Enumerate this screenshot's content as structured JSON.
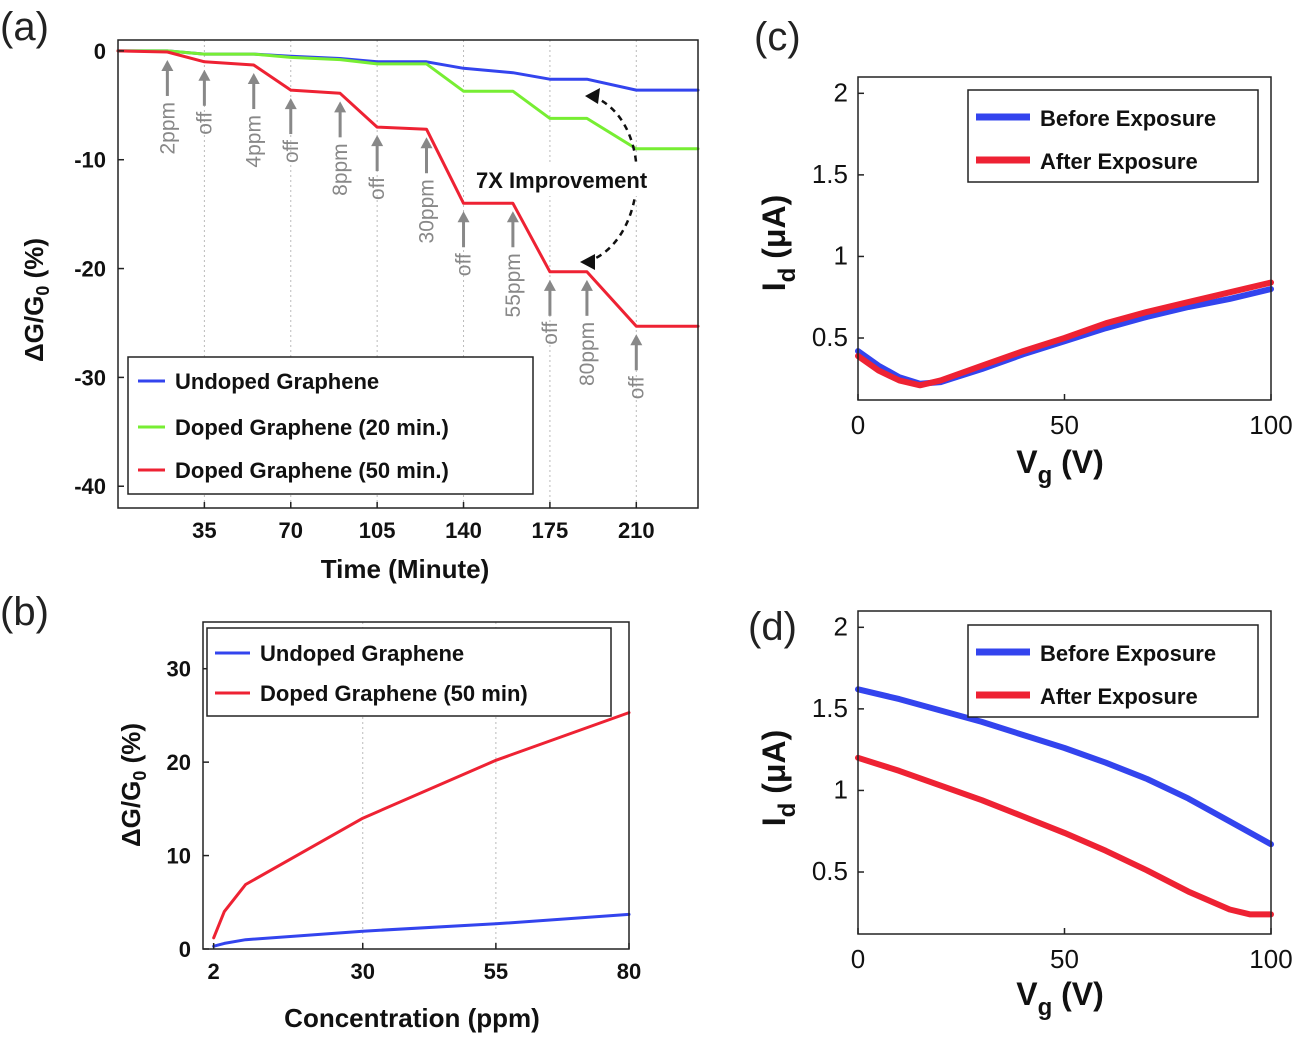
{
  "colors": {
    "blue": "#3344ee",
    "green": "#77ee33",
    "red": "#ee2233",
    "annotation": "#888888",
    "grid": "#bbbbbb"
  },
  "chart_data": [
    {
      "id": "a",
      "panel_label": "(a)",
      "type": "line",
      "xlabel": "Time (Minute)",
      "ylabel_main": "ΔG/G",
      "ylabel_sub": "0",
      "ylabel_tail": " (%)",
      "xlim": [
        0,
        235
      ],
      "ylim": [
        -42,
        1
      ],
      "xticks": [
        35,
        70,
        105,
        140,
        175,
        210
      ],
      "yticks": [
        0,
        -10,
        -20,
        -30,
        -40
      ],
      "grid_x": [
        35,
        70,
        105,
        140,
        175,
        210
      ],
      "series": [
        {
          "name": "Undoped Graphene",
          "color": "#3344ee",
          "x": [
            0,
            20,
            35,
            55,
            70,
            90,
            105,
            125,
            140,
            160,
            175,
            190,
            210,
            235
          ],
          "y": [
            0,
            0,
            -0.3,
            -0.3,
            -0.5,
            -0.7,
            -1.0,
            -1.0,
            -1.6,
            -2.0,
            -2.6,
            -2.6,
            -3.6,
            -3.6
          ]
        },
        {
          "name": "Doped Graphene (20 min.)",
          "color": "#77ee33",
          "x": [
            0,
            20,
            35,
            55,
            70,
            90,
            105,
            125,
            140,
            160,
            175,
            190,
            210,
            235
          ],
          "y": [
            0,
            0,
            -0.3,
            -0.3,
            -0.6,
            -0.8,
            -1.2,
            -1.2,
            -3.7,
            -3.7,
            -6.2,
            -6.2,
            -9.0,
            -9.0
          ]
        },
        {
          "name": "Doped Graphene (50 min.)",
          "color": "#ee2233",
          "x": [
            0,
            20,
            35,
            55,
            70,
            90,
            105,
            125,
            140,
            160,
            175,
            190,
            210,
            235
          ],
          "y": [
            0,
            -0.1,
            -1.0,
            -1.3,
            -3.6,
            -3.9,
            -7.0,
            -7.2,
            -14.0,
            -14.0,
            -20.3,
            -20.3,
            -25.3,
            -25.3
          ]
        }
      ],
      "annotations": [
        {
          "text": "2ppm",
          "x": 20
        },
        {
          "text": "off",
          "x": 35
        },
        {
          "text": "4ppm",
          "x": 55
        },
        {
          "text": "off",
          "x": 70
        },
        {
          "text": "8ppm",
          "x": 90
        },
        {
          "text": "off",
          "x": 105
        },
        {
          "text": "30ppm",
          "x": 125
        },
        {
          "text": "off",
          "x": 140
        },
        {
          "text": "55ppm",
          "x": 160
        },
        {
          "text": "off",
          "x": 175
        },
        {
          "text": "80ppm",
          "x": 190
        },
        {
          "text": "off",
          "x": 210
        }
      ],
      "improvement_label": "7X Improvement",
      "legend_position": "bottom-left"
    },
    {
      "id": "b",
      "panel_label": "(b)",
      "type": "line",
      "xlabel": "Concentration (ppm)",
      "ylabel_main": "ΔG/G",
      "ylabel_sub": "0",
      "ylabel_tail": " (%)",
      "xlim": [
        0,
        80
      ],
      "ylim": [
        0,
        35
      ],
      "xticks": [
        2,
        30,
        55,
        80
      ],
      "yticks": [
        0,
        10,
        20,
        30
      ],
      "grid_x": [
        30,
        55
      ],
      "series": [
        {
          "name": "Undoped Graphene",
          "color": "#3344ee",
          "x": [
            2,
            4,
            8,
            30,
            55,
            80
          ],
          "y": [
            0.3,
            0.6,
            1.0,
            1.9,
            2.7,
            3.7
          ]
        },
        {
          "name": "Doped Graphene (50 min)",
          "color": "#ee2233",
          "x": [
            2,
            4,
            8,
            30,
            55,
            80
          ],
          "y": [
            1.2,
            4.0,
            6.9,
            14.0,
            20.2,
            25.3
          ]
        }
      ],
      "legend_position": "top"
    },
    {
      "id": "c",
      "panel_label": "(c)",
      "type": "line",
      "xlabel_main": "V",
      "xlabel_sub": "g",
      "xlabel_tail": " (V)",
      "ylabel_main": "I",
      "ylabel_sub": "d",
      "ylabel_tail": " (μA)",
      "xlim": [
        0,
        100
      ],
      "ylim": [
        0.12,
        2.1
      ],
      "xticks": [
        0,
        50,
        100
      ],
      "yticks": [
        0.5,
        1,
        1.5,
        2
      ],
      "series": [
        {
          "name": "Before Exposure",
          "color": "#3344ee",
          "x": [
            0,
            5,
            10,
            15,
            20,
            30,
            40,
            50,
            60,
            70,
            80,
            90,
            100
          ],
          "y": [
            0.42,
            0.33,
            0.26,
            0.22,
            0.23,
            0.31,
            0.4,
            0.48,
            0.56,
            0.63,
            0.69,
            0.74,
            0.8
          ]
        },
        {
          "name": "After Exposure",
          "color": "#ee2233",
          "x": [
            0,
            5,
            10,
            15,
            20,
            30,
            40,
            50,
            60,
            70,
            80,
            90,
            100
          ],
          "y": [
            0.39,
            0.3,
            0.24,
            0.21,
            0.24,
            0.33,
            0.42,
            0.5,
            0.59,
            0.66,
            0.72,
            0.78,
            0.84
          ]
        }
      ],
      "legend_position": "top-right"
    },
    {
      "id": "d",
      "panel_label": "(d)",
      "type": "line",
      "xlabel_main": "V",
      "xlabel_sub": "g",
      "xlabel_tail": " (V)",
      "ylabel_main": "I",
      "ylabel_sub": "d",
      "ylabel_tail": " (μA)",
      "xlim": [
        0,
        100
      ],
      "ylim": [
        0.12,
        2.1
      ],
      "xticks": [
        0,
        50,
        100
      ],
      "yticks": [
        0.5,
        1,
        1.5,
        2
      ],
      "series": [
        {
          "name": "Before Exposure",
          "color": "#3344ee",
          "x": [
            0,
            10,
            20,
            30,
            40,
            50,
            60,
            70,
            80,
            90,
            100
          ],
          "y": [
            1.62,
            1.56,
            1.49,
            1.42,
            1.34,
            1.26,
            1.17,
            1.07,
            0.95,
            0.81,
            0.67
          ]
        },
        {
          "name": "After Exposure",
          "color": "#ee2233",
          "x": [
            0,
            10,
            20,
            30,
            40,
            50,
            60,
            70,
            80,
            90,
            95,
            100
          ],
          "y": [
            1.2,
            1.12,
            1.03,
            0.94,
            0.84,
            0.74,
            0.63,
            0.51,
            0.38,
            0.27,
            0.24,
            0.24
          ]
        }
      ],
      "legend_position": "top-right"
    }
  ]
}
